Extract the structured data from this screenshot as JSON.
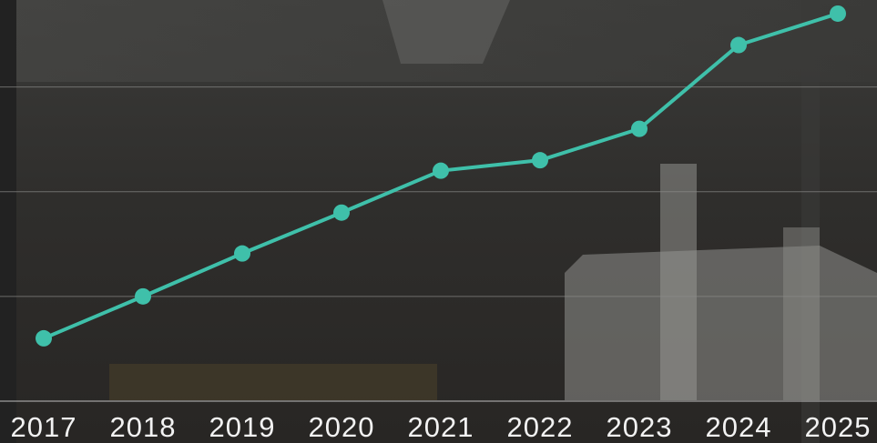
{
  "chart_data": {
    "type": "line",
    "categories": [
      "2017",
      "2018",
      "2019",
      "2020",
      "2021",
      "2022",
      "2023",
      "2024",
      "2025"
    ],
    "series": [
      {
        "color": "#3fc0aa",
        "values": [
          0.6,
          1.0,
          1.41,
          1.8,
          2.2,
          2.3,
          2.6,
          3.4,
          3.7
        ]
      }
    ],
    "ylim": [
      0,
      3.83
    ],
    "yticks": [
      0,
      1,
      2,
      3
    ],
    "grid": true
  }
}
